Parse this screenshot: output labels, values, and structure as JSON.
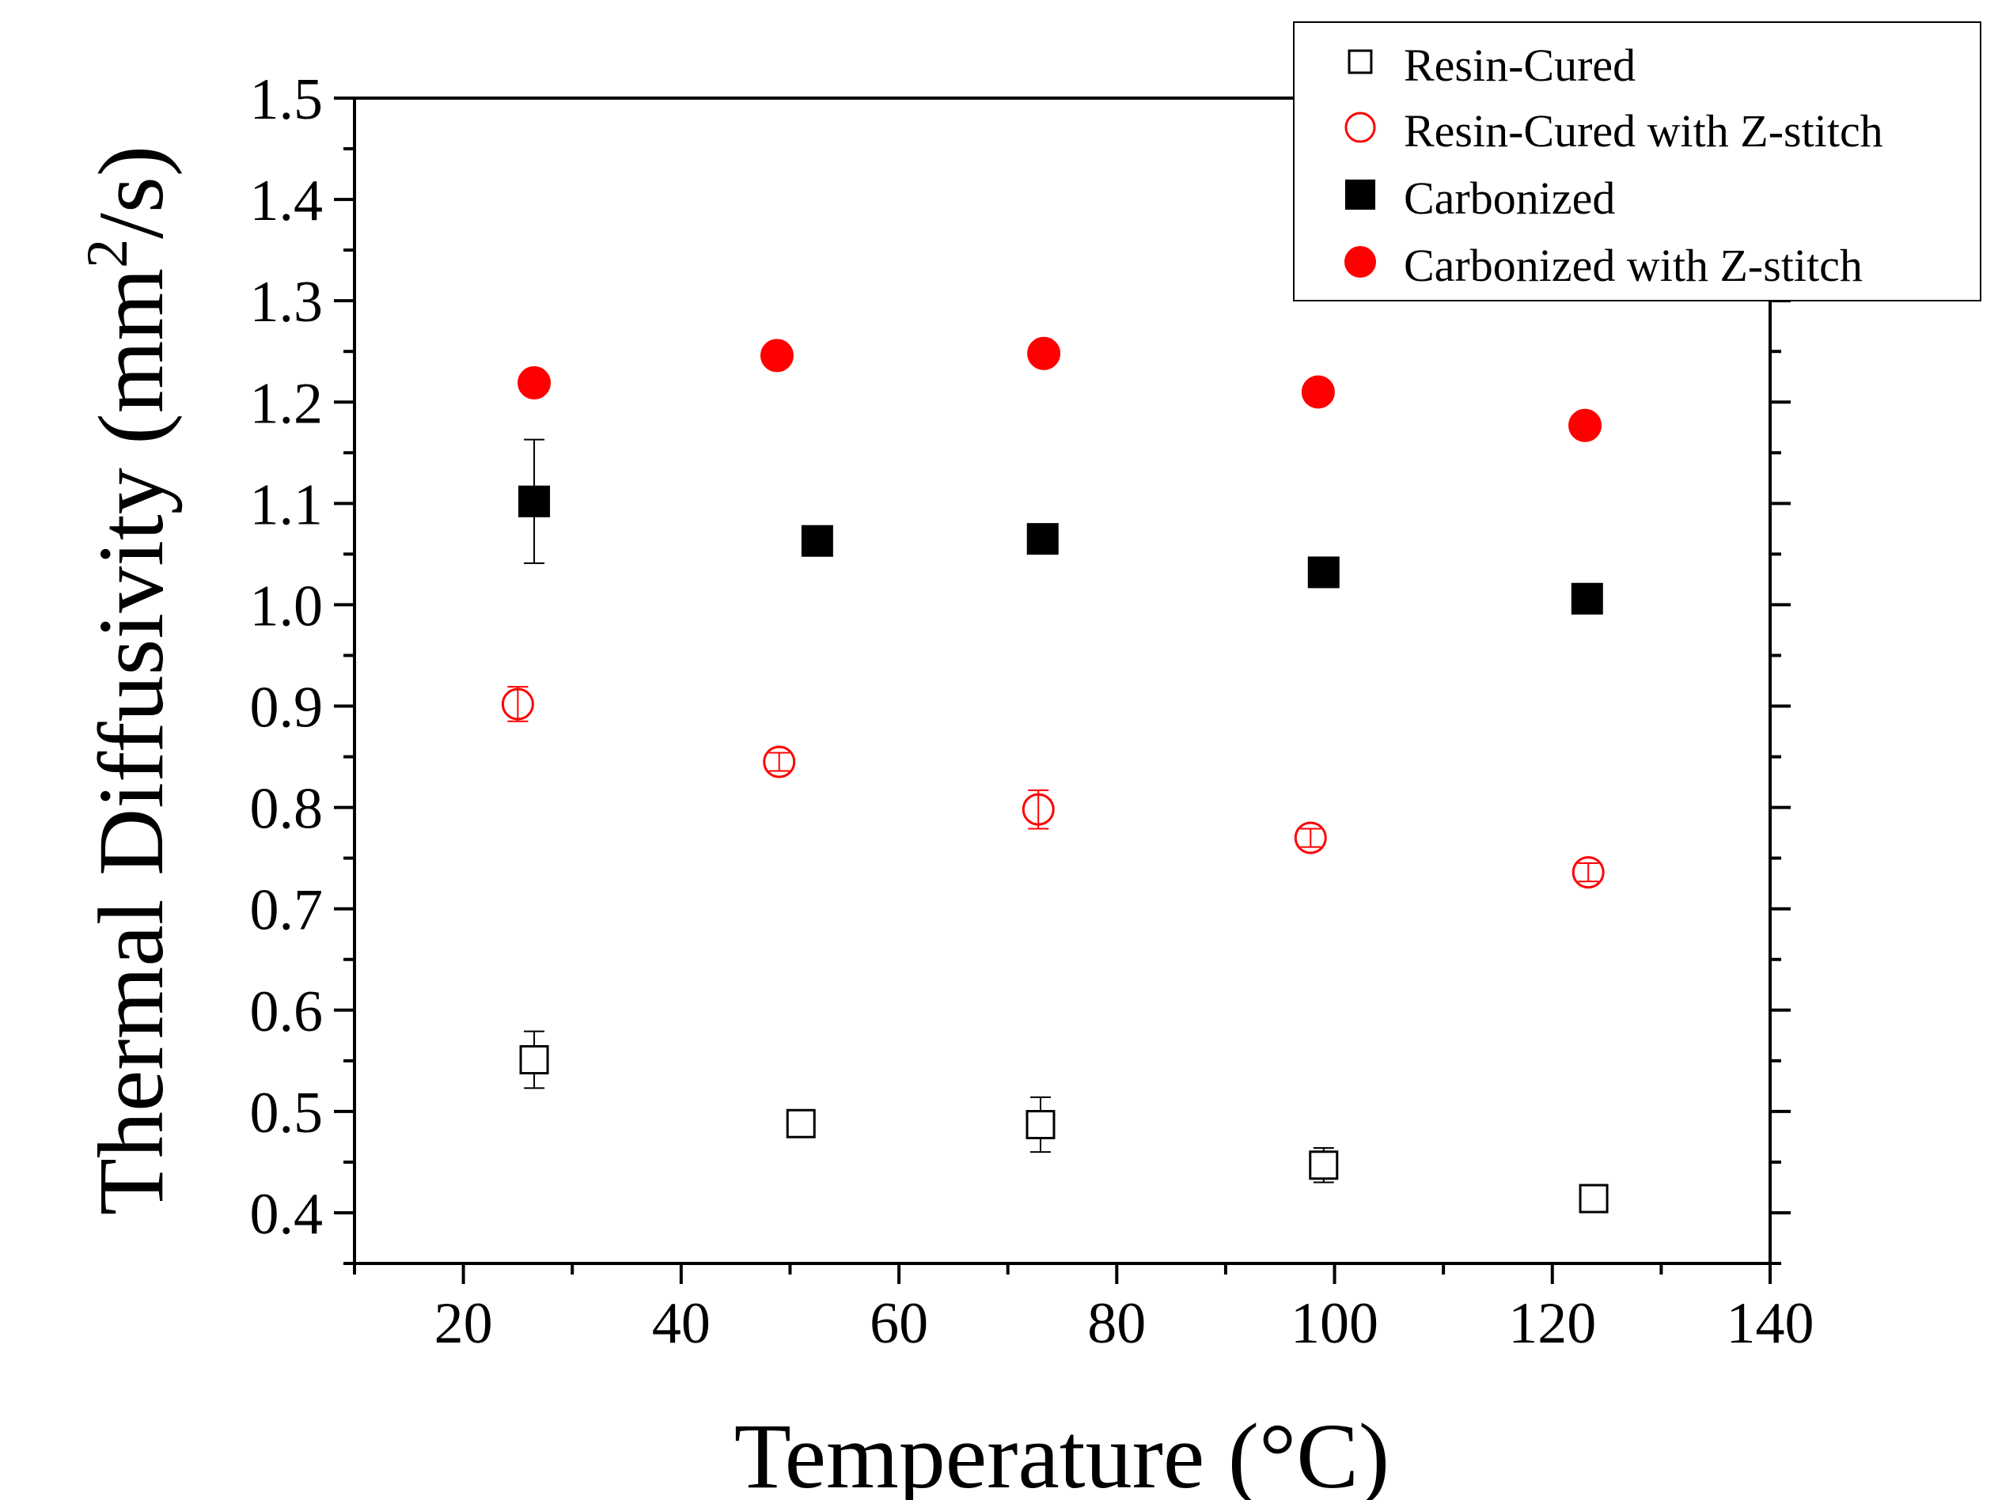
{
  "chart_data": {
    "type": "scatter",
    "title": "",
    "xlabel": "Temperature (°C)",
    "ylabel": {
      "prefix": "Thermal Diffusivity (mm",
      "superscript": "2",
      "suffix": "/s)"
    },
    "xlim": [
      10,
      140
    ],
    "ylim": [
      0.35,
      1.5
    ],
    "x_ticks": [
      {
        "value": 20,
        "label": "20"
      },
      {
        "value": 40,
        "label": "40"
      },
      {
        "value": 60,
        "label": "60"
      },
      {
        "value": 80,
        "label": "80"
      },
      {
        "value": 100,
        "label": "100"
      },
      {
        "value": 120,
        "label": "120"
      },
      {
        "value": 140,
        "label": "140"
      }
    ],
    "y_ticks": [
      {
        "value": 0.4,
        "label": "0.4"
      },
      {
        "value": 0.5,
        "label": "0.5"
      },
      {
        "value": 0.6,
        "label": "0.6"
      },
      {
        "value": 0.7,
        "label": "0.7"
      },
      {
        "value": 0.8,
        "label": "0.8"
      },
      {
        "value": 0.9,
        "label": "0.9"
      },
      {
        "value": 1.0,
        "label": "1.0"
      },
      {
        "value": 1.1,
        "label": "1.1"
      },
      {
        "value": 1.2,
        "label": "1.2"
      },
      {
        "value": 1.3,
        "label": "1.3"
      },
      {
        "value": 1.4,
        "label": "1.4"
      },
      {
        "value": 1.5,
        "label": "1.5"
      }
    ],
    "grid": false,
    "legend_position": "top-right",
    "series": [
      {
        "name": "Resin-Cured",
        "marker": "square-open",
        "color": "#000000",
        "points": [
          {
            "x": 26.5,
            "y": 0.551,
            "err": 0.028
          },
          {
            "x": 51.0,
            "y": 0.488,
            "err": 0.012
          },
          {
            "x": 73.0,
            "y": 0.487,
            "err": 0.027
          },
          {
            "x": 99.0,
            "y": 0.447,
            "err": 0.017
          },
          {
            "x": 123.8,
            "y": 0.414,
            "err": 0.008
          }
        ]
      },
      {
        "name": "Resin-Cured with Z-stitch",
        "marker": "circle-open",
        "color": "#ff0000",
        "points": [
          {
            "x": 25.0,
            "y": 0.902,
            "err": 0.017
          },
          {
            "x": 49.0,
            "y": 0.845,
            "err": 0.009
          },
          {
            "x": 72.8,
            "y": 0.798,
            "err": 0.019
          },
          {
            "x": 97.8,
            "y": 0.77,
            "err": 0.009
          },
          {
            "x": 123.3,
            "y": 0.736,
            "err": 0.009
          }
        ]
      },
      {
        "name": "Carbonized",
        "marker": "square-filled",
        "color": "#000000",
        "points": [
          {
            "x": 26.5,
            "y": 1.102,
            "err": 0.061
          },
          {
            "x": 52.5,
            "y": 1.063,
            "err": 0.012
          },
          {
            "x": 73.2,
            "y": 1.065,
            "err": 0.008
          },
          {
            "x": 99.0,
            "y": 1.032,
            "err": 0.008
          },
          {
            "x": 123.2,
            "y": 1.006,
            "err": 0.008
          }
        ]
      },
      {
        "name": "Carbonized with Z-stitch",
        "marker": "circle-filled",
        "color": "#ff0000",
        "points": [
          {
            "x": 26.5,
            "y": 1.219,
            "err": 0.012
          },
          {
            "x": 48.8,
            "y": 1.246,
            "err": 0.008
          },
          {
            "x": 73.3,
            "y": 1.248,
            "err": 0.008
          },
          {
            "x": 98.5,
            "y": 1.21,
            "err": 0.008
          },
          {
            "x": 123.0,
            "y": 1.177,
            "err": 0.008
          }
        ]
      }
    ]
  }
}
